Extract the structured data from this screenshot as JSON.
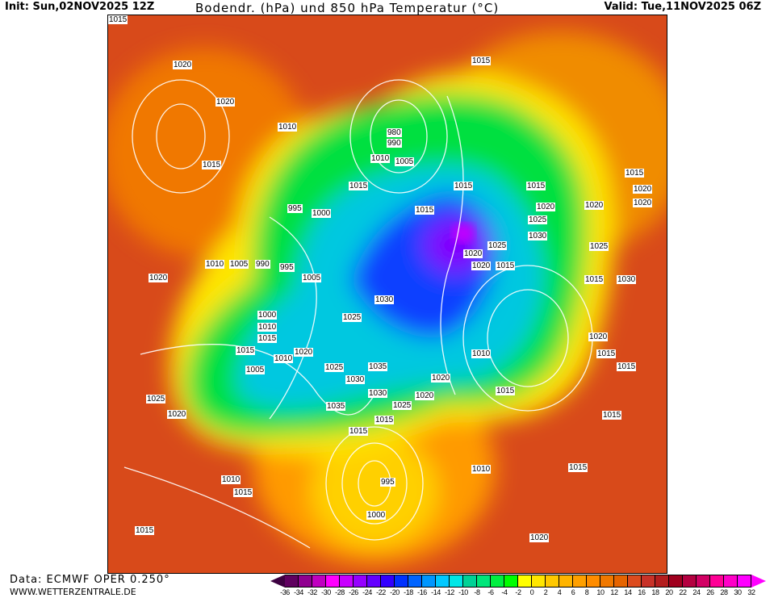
{
  "header": {
    "init": "Init: Sun,02NOV2025 12Z",
    "title": "Bodendr. (hPa) und 850 hPa Temperatur (°C)",
    "valid": "Valid: Tue,11NOV2025 06Z"
  },
  "footer": {
    "source": "Data: ECMWF OPER 0.250°",
    "website": "WWW.WETTERZENTRALE.DE"
  },
  "colorbar": {
    "labels": [
      -36,
      -34,
      -32,
      -30,
      -28,
      -26,
      -24,
      -22,
      -20,
      -18,
      -16,
      -14,
      -12,
      -10,
      -8,
      -6,
      -4,
      -2,
      0,
      2,
      4,
      6,
      8,
      10,
      12,
      14,
      16,
      18,
      20,
      22,
      24,
      26,
      28,
      30,
      32
    ],
    "colors": [
      "#600060",
      "#900090",
      "#c000c0",
      "#ff00ff",
      "#c800ff",
      "#9600ff",
      "#6400ff",
      "#3200ff",
      "#0032ff",
      "#0064ff",
      "#0096ff",
      "#00c8ff",
      "#00e6e6",
      "#00d296",
      "#00e67a",
      "#00f040",
      "#00ff00",
      "#ffff00",
      "#ffe600",
      "#ffc800",
      "#ffb400",
      "#ffa000",
      "#ff8c00",
      "#f07800",
      "#e66400",
      "#dc4b1e",
      "#c83228",
      "#b41e1e",
      "#a0001e",
      "#b40040",
      "#d20064",
      "#ff0096",
      "#ff00c8",
      "#ff00ff"
    ],
    "low_color": "#3c0040",
    "high_color": "#ff00ff"
  },
  "isobar_labels": [
    "1015",
    "1020",
    "1020",
    "1015",
    "1010",
    "980",
    "990",
    "1010",
    "1005",
    "1015",
    "1015",
    "1015",
    "995",
    "1000",
    "1015",
    "1010",
    "1005",
    "990",
    "995",
    "1020",
    "1005",
    "1015",
    "1030",
    "1025",
    "1020",
    "1000",
    "1010",
    "1015",
    "1010",
    "1005",
    "1025",
    "1030",
    "1035",
    "1020",
    "1015",
    "1025",
    "1020",
    "1015",
    "1025",
    "1030",
    "1020",
    "1015",
    "1020",
    "1025",
    "1030",
    "1025",
    "1020",
    "1020",
    "1025",
    "1010",
    "1020",
    "1015",
    "1015",
    "1015",
    "1020",
    "1015",
    "1035",
    "1020",
    "1015",
    "1015",
    "1010",
    "1015",
    "995",
    "1000",
    "1020",
    "1015",
    "1015",
    "1020",
    "1030",
    "1015",
    "1010"
  ]
}
